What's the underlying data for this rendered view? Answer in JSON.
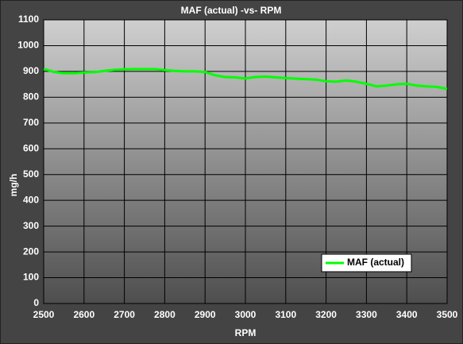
{
  "chart_data": {
    "type": "line",
    "title": "MAF (actual) -vs- RPM",
    "x_label": "RPM",
    "y_label": "mg/h",
    "x": [
      2500,
      2525,
      2550,
      2575,
      2600,
      2625,
      2650,
      2675,
      2700,
      2725,
      2750,
      2775,
      2800,
      2825,
      2850,
      2875,
      2900,
      2925,
      2950,
      2975,
      3000,
      3025,
      3050,
      3075,
      3100,
      3125,
      3150,
      3175,
      3200,
      3225,
      3250,
      3275,
      3300,
      3325,
      3350,
      3375,
      3400,
      3425,
      3450,
      3475,
      3500
    ],
    "series": [
      {
        "name": "MAF (actual)",
        "color": "#00ff00",
        "values": [
          910,
          898,
          893,
          893,
          896,
          897,
          902,
          906,
          908,
          909,
          909,
          909,
          905,
          902,
          900,
          900,
          898,
          885,
          878,
          877,
          873,
          878,
          880,
          877,
          874,
          872,
          870,
          868,
          862,
          860,
          865,
          860,
          852,
          842,
          845,
          850,
          852,
          845,
          842,
          840,
          832
        ]
      }
    ],
    "xlim": [
      2500,
      3500
    ],
    "xticks": [
      2500,
      2600,
      2700,
      2800,
      2900,
      3000,
      3100,
      3200,
      3300,
      3400,
      3500
    ],
    "ylim": [
      0,
      1100
    ],
    "yticks": [
      0,
      100,
      200,
      300,
      400,
      500,
      600,
      700,
      800,
      900,
      1000,
      1100
    ],
    "grid": true,
    "legend_position": "lower right"
  }
}
